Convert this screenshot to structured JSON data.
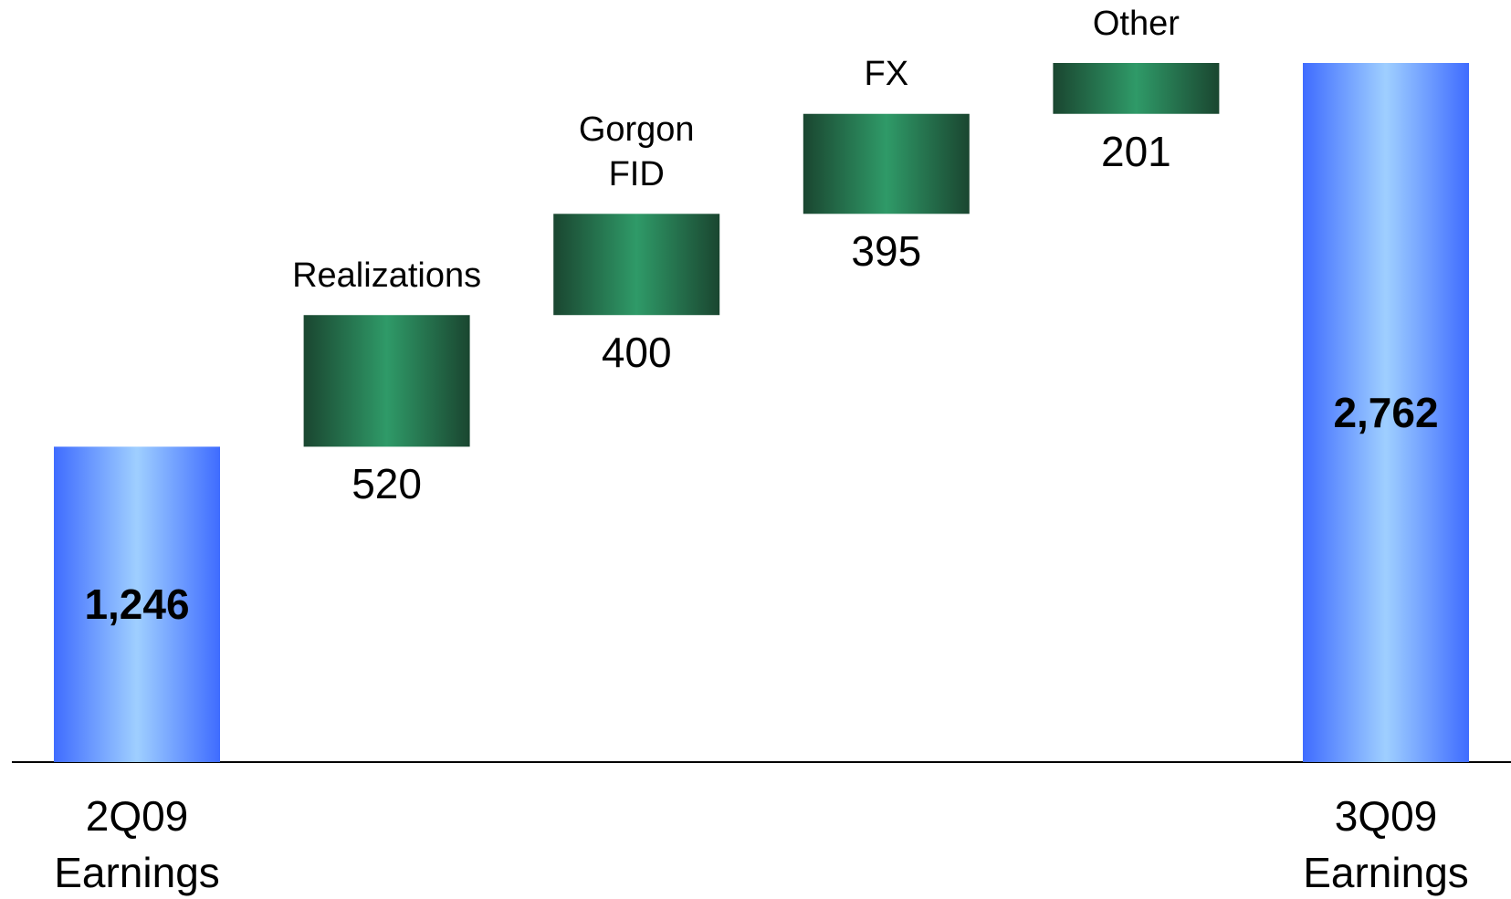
{
  "chart_data": {
    "type": "waterfall",
    "categories": [
      "2Q09\nEarnings",
      "Realizations",
      "Gorgon\nFID",
      "FX",
      "Other",
      "3Q09\nEarnings"
    ],
    "values": [
      1246,
      520,
      400,
      395,
      201,
      2762
    ],
    "value_labels": [
      "1,246",
      "520",
      "400",
      "395",
      "201",
      "2,762"
    ],
    "measure": [
      "absolute",
      "relative",
      "relative",
      "relative",
      "relative",
      "total"
    ],
    "colors": {
      "total": [
        "#3f6cff",
        "#9fcfff"
      ],
      "increase": [
        "#1a4630",
        "#2f9a68"
      ]
    }
  }
}
